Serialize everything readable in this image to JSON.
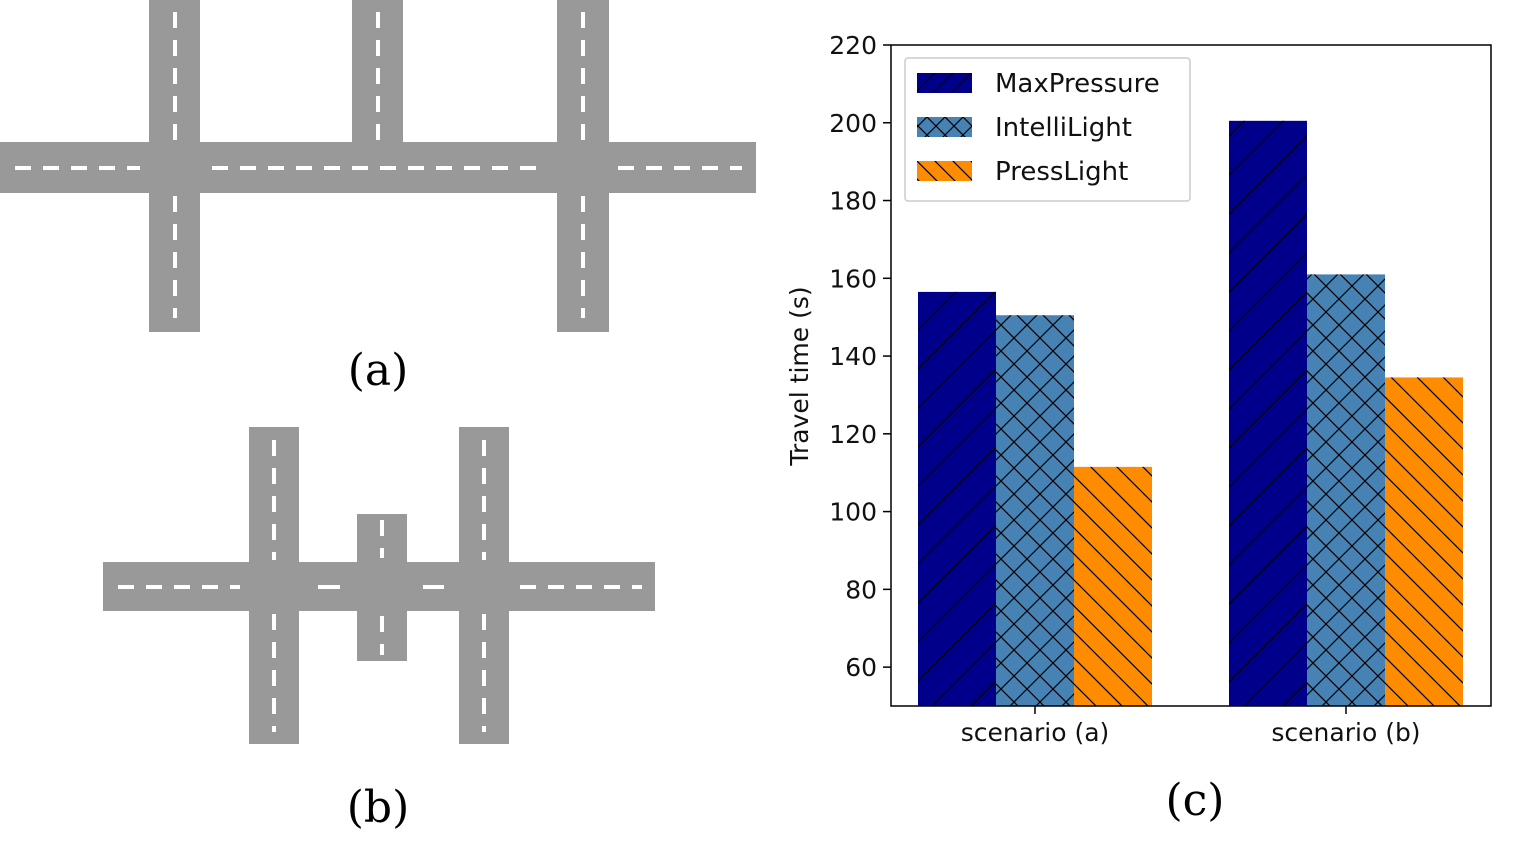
{
  "captions": {
    "a": "(a)",
    "b": "(b)",
    "c": "(c)"
  },
  "colors": {
    "road": "#999999",
    "road_marking": "#ffffff",
    "maxpressure": "#00008b",
    "intellilight": "#4682b4",
    "presslight": "#ff8c00"
  },
  "chart_data": {
    "type": "bar",
    "categories": [
      "scenario (a)",
      "scenario (b)"
    ],
    "series": [
      {
        "name": "MaxPressure",
        "values": [
          156.5,
          200.5
        ],
        "color": "#00008b",
        "hatch": "/"
      },
      {
        "name": "IntelliLight",
        "values": [
          150.5,
          161
        ],
        "color": "#4682b4",
        "hatch": "x"
      },
      {
        "name": "PressLight",
        "values": [
          111.5,
          134.5
        ],
        "color": "#ff8c00",
        "hatch": "\\"
      }
    ],
    "title": "",
    "xlabel": "",
    "ylabel": "Travel time (s)",
    "ylim": [
      50,
      220
    ],
    "yticks": [
      60,
      80,
      100,
      120,
      140,
      160,
      180,
      200,
      220
    ],
    "grid": false,
    "legend": "top-left"
  }
}
